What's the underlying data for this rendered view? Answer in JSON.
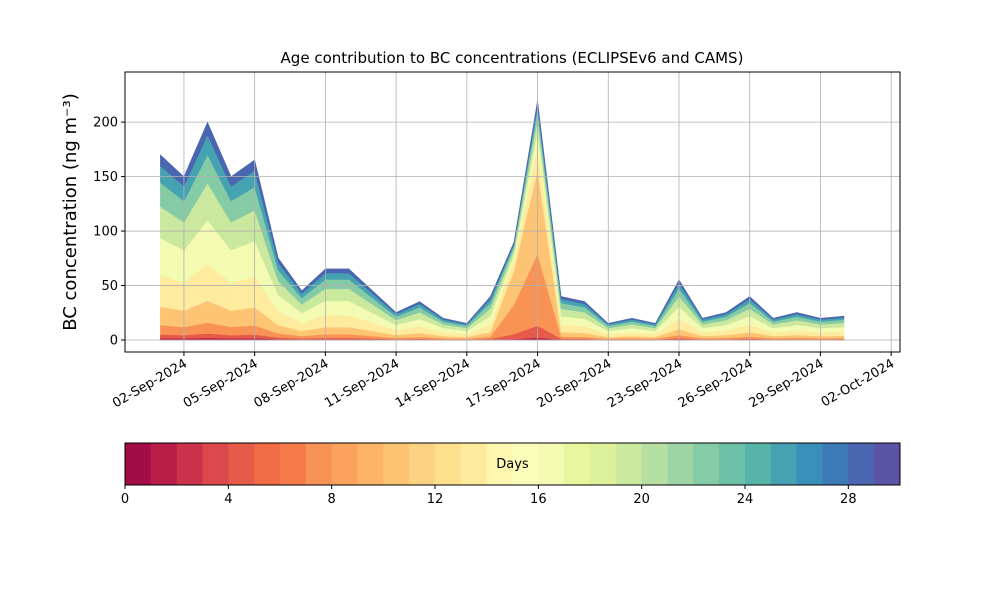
{
  "chart_data": {
    "type": "stacked_area",
    "title": "Age contribution to BC concentrations (ECLIPSEv6 and CAMS)",
    "ylabel": "BC concentration (ng m⁻³)",
    "x": [
      "2024-09-01",
      "2024-09-02",
      "2024-09-03",
      "2024-09-04",
      "2024-09-05",
      "2024-09-06",
      "2024-09-07",
      "2024-09-08",
      "2024-09-09",
      "2024-09-10",
      "2024-09-11",
      "2024-09-12",
      "2024-09-13",
      "2024-09-14",
      "2024-09-15",
      "2024-09-16",
      "2024-09-17",
      "2024-09-18",
      "2024-09-19",
      "2024-09-20",
      "2024-09-21",
      "2024-09-22",
      "2024-09-23",
      "2024-09-24",
      "2024-09-25",
      "2024-09-26",
      "2024-09-27",
      "2024-09-28",
      "2024-09-29",
      "2024-09-30"
    ],
    "xlim": [
      "2024-08-30T12:00Z",
      "2024-10-02T09:00Z"
    ],
    "xticks": [
      {
        "value": "2024-09-02",
        "label": "02-Sep-2024"
      },
      {
        "value": "2024-09-05",
        "label": "05-Sep-2024"
      },
      {
        "value": "2024-09-08",
        "label": "08-Sep-2024"
      },
      {
        "value": "2024-09-11",
        "label": "11-Sep-2024"
      },
      {
        "value": "2024-09-14",
        "label": "14-Sep-2024"
      },
      {
        "value": "2024-09-17",
        "label": "17-Sep-2024"
      },
      {
        "value": "2024-09-20",
        "label": "20-Sep-2024"
      },
      {
        "value": "2024-09-23",
        "label": "23-Sep-2024"
      },
      {
        "value": "2024-09-26",
        "label": "26-Sep-2024"
      },
      {
        "value": "2024-09-29",
        "label": "29-Sep-2024"
      },
      {
        "value": "2024-10-02",
        "label": "02-Oct-2024"
      }
    ],
    "ylim": [
      -11,
      246
    ],
    "yticks": [
      0,
      50,
      100,
      150,
      200
    ],
    "grid": true,
    "series": [
      {
        "color": "#b81e48",
        "values": [
          1.7,
          1.5,
          2,
          1.5,
          1.7,
          0.8,
          0.5,
          0.7,
          0.7,
          0.5,
          0.3,
          0.4,
          0.2,
          0.2,
          0.4,
          0.9,
          2.2,
          0.4,
          0.4,
          0.2,
          0.2,
          0.2,
          0.6,
          0.2,
          0.3,
          0.4,
          0.2,
          0.3,
          0.2,
          0.2
        ]
      },
      {
        "color": "#e65a4a",
        "values": [
          3.4,
          3,
          4,
          3,
          3.3,
          1.5,
          0.9,
          1.3,
          1.3,
          0.9,
          0.5,
          0.7,
          0.4,
          0.3,
          0.8,
          4.5,
          11,
          0.8,
          0.7,
          0.3,
          0.4,
          0.3,
          1.1,
          0.4,
          0.5,
          0.8,
          0.4,
          0.5,
          0.4,
          0.4
        ]
      },
      {
        "color": "#f99355",
        "values": [
          8.5,
          7.5,
          10,
          7.5,
          8.3,
          3.8,
          2.3,
          3.3,
          3.3,
          2.3,
          1.3,
          1.8,
          1,
          0.8,
          2,
          27,
          66,
          2,
          1.8,
          0.8,
          1,
          0.8,
          2.8,
          1,
          1.3,
          2,
          1,
          1.3,
          1,
          1.1
        ]
      },
      {
        "color": "#fdc474",
        "values": [
          17,
          15,
          20,
          15,
          16.5,
          7.5,
          4.5,
          6.5,
          6.5,
          4.5,
          2.5,
          3.5,
          2,
          1.5,
          4,
          31.5,
          77,
          4,
          3.5,
          1.5,
          2,
          1.5,
          5.5,
          2,
          2.5,
          4,
          2,
          2.5,
          2,
          2.2
        ]
      },
      {
        "color": "#feeb9e",
        "values": [
          28.9,
          25.5,
          34,
          25.5,
          28.1,
          12.8,
          7.7,
          11.1,
          11.1,
          7.7,
          4.3,
          6,
          3.4,
          2.6,
          6.8,
          9,
          22,
          6.8,
          6,
          2.6,
          3.4,
          2.6,
          9.4,
          3.4,
          4.3,
          6.8,
          3.4,
          4.3,
          3.4,
          3.7
        ]
      },
      {
        "color": "#f3fab2",
        "values": [
          34,
          30,
          40,
          30,
          33,
          15,
          9,
          13,
          13,
          9,
          5,
          7,
          4,
          3,
          8,
          5.4,
          13.2,
          8,
          7,
          3,
          4,
          3,
          11,
          4,
          5,
          8,
          4,
          5,
          4,
          4.4
        ]
      },
      {
        "color": "#cbe89f",
        "values": [
          28.9,
          25.5,
          34,
          25.5,
          28.1,
          12.8,
          7.7,
          11.1,
          11.1,
          7.7,
          4.3,
          6,
          3.4,
          2.6,
          6.8,
          4.5,
          11,
          6.8,
          6,
          2.6,
          3.4,
          2.6,
          9.4,
          3.4,
          4.3,
          6.8,
          3.4,
          4.3,
          3.4,
          3.7
        ]
      },
      {
        "color": "#85cba5",
        "values": [
          22.1,
          19.5,
          26,
          19.5,
          21.5,
          9.8,
          5.9,
          8.5,
          8.5,
          5.9,
          3.3,
          4.6,
          2.6,
          2,
          5.2,
          3.6,
          8.8,
          5.2,
          4.6,
          2,
          2.6,
          2,
          7.2,
          2.6,
          3.3,
          5.2,
          2.6,
          3.3,
          2.6,
          2.9
        ]
      },
      {
        "color": "#45a3b1",
        "values": [
          15.3,
          13.5,
          18,
          13.5,
          14.9,
          6.8,
          4.1,
          5.9,
          5.9,
          4.1,
          2.3,
          3.2,
          1.8,
          1.4,
          3.6,
          1.8,
          4.4,
          3.6,
          3.2,
          1.4,
          1.8,
          1.4,
          5,
          1.8,
          2.3,
          3.6,
          1.8,
          2.3,
          1.8,
          2
        ]
      },
      {
        "color": "#4a66b0",
        "values": [
          10.2,
          9,
          12,
          9,
          9.9,
          4.5,
          2.7,
          3.9,
          3.9,
          2.7,
          1.5,
          2.1,
          1.2,
          0.9,
          2.4,
          1.8,
          4.4,
          2.4,
          2.1,
          0.9,
          1.2,
          0.9,
          3.3,
          1.2,
          1.5,
          2.4,
          1.2,
          1.5,
          1.2,
          1.3
        ]
      }
    ],
    "colorbar": {
      "label": "Days",
      "lim": [
        0,
        30
      ],
      "ticks": [
        0,
        4,
        8,
        12,
        16,
        20,
        24,
        28
      ],
      "colors": [
        "#a30d45",
        "#b81e48",
        "#cc334b",
        "#dc494c",
        "#e65a4a",
        "#f06c44",
        "#f67b4a",
        "#f99355",
        "#fba35e",
        "#fdb466",
        "#fdc474",
        "#fed283",
        "#fee08f",
        "#feeb9e",
        "#fff6b0",
        "#fbfdbb",
        "#f3fab2",
        "#e8f69d",
        "#dcf19a",
        "#cbe89f",
        "#b6e0a1",
        "#9dd5a4",
        "#85cba5",
        "#6dc1a7",
        "#58b3ab",
        "#45a3b1",
        "#3a8fb8",
        "#3c7ab8",
        "#4a66b0",
        "#5b53a4"
      ]
    }
  }
}
